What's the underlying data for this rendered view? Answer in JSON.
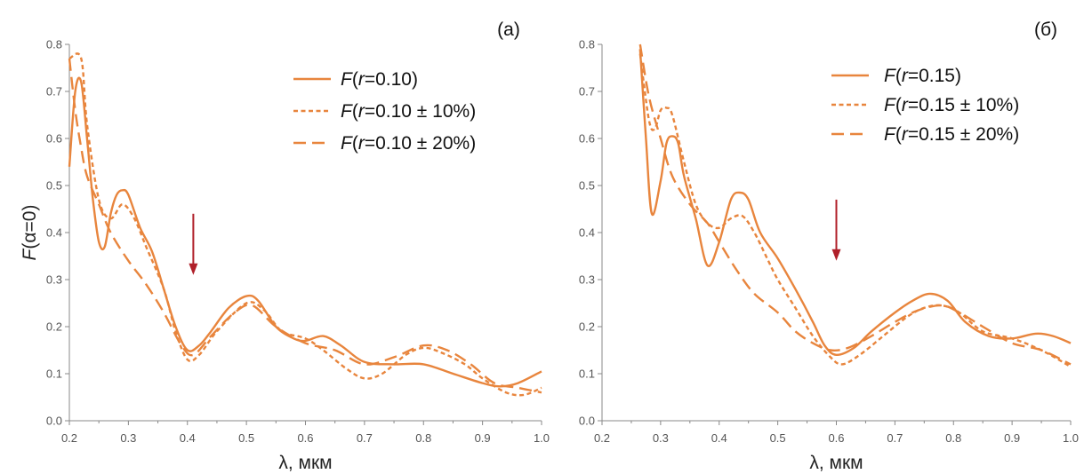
{
  "colors": {
    "series": "#E8853D",
    "arrow": "#B0202A",
    "axis": "#888888"
  },
  "chart_data": [
    {
      "type": "line",
      "panel_label": "(a)",
      "xlabel": "λ, мкм",
      "ylabel": "F(α=0)",
      "xlim": [
        0.2,
        1.0
      ],
      "ylim": [
        0.0,
        0.8
      ],
      "x_ticks": [
        "0.2",
        "0.3",
        "0.4",
        "0.5",
        "0.6",
        "0.7",
        "0.8",
        "0.9",
        "1.0"
      ],
      "y_ticks": [
        "0.0",
        "0.1",
        "0.2",
        "0.3",
        "0.4",
        "0.5",
        "0.6",
        "0.7",
        "0.8"
      ],
      "legend_position": "top-right",
      "grid": false,
      "arrow_at": {
        "x": 0.41,
        "y_from": 0.44,
        "y_to": 0.31
      },
      "series": [
        {
          "name": "F(r=0.10)",
          "legend": {
            "italic": "F",
            "open": "(",
            "var": "r",
            "rest": "=0.10)"
          },
          "style": "solid",
          "points": [
            [
              0.2,
              0.54
            ],
            [
              0.21,
              0.7
            ],
            [
              0.22,
              0.72
            ],
            [
              0.23,
              0.6
            ],
            [
              0.24,
              0.47
            ],
            [
              0.25,
              0.38
            ],
            [
              0.26,
              0.37
            ],
            [
              0.27,
              0.44
            ],
            [
              0.28,
              0.48
            ],
            [
              0.29,
              0.49
            ],
            [
              0.3,
              0.48
            ],
            [
              0.32,
              0.41
            ],
            [
              0.34,
              0.36
            ],
            [
              0.36,
              0.28
            ],
            [
              0.38,
              0.2
            ],
            [
              0.4,
              0.15
            ],
            [
              0.42,
              0.16
            ],
            [
              0.44,
              0.19
            ],
            [
              0.47,
              0.24
            ],
            [
              0.5,
              0.265
            ],
            [
              0.52,
              0.255
            ],
            [
              0.55,
              0.2
            ],
            [
              0.58,
              0.175
            ],
            [
              0.6,
              0.17
            ],
            [
              0.63,
              0.18
            ],
            [
              0.66,
              0.16
            ],
            [
              0.7,
              0.125
            ],
            [
              0.75,
              0.12
            ],
            [
              0.8,
              0.12
            ],
            [
              0.85,
              0.1
            ],
            [
              0.9,
              0.08
            ],
            [
              0.93,
              0.073
            ],
            [
              0.96,
              0.08
            ],
            [
              1.0,
              0.105
            ]
          ]
        },
        {
          "name": "F(r=0.10 ± 10%)",
          "legend": {
            "italic": "F",
            "open": "(",
            "var": "r",
            "rest": "=0.10 ± 10%)"
          },
          "style": "short-dash",
          "points": [
            [
              0.2,
              0.77
            ],
            [
              0.22,
              0.77
            ],
            [
              0.23,
              0.63
            ],
            [
              0.25,
              0.47
            ],
            [
              0.27,
              0.43
            ],
            [
              0.29,
              0.46
            ],
            [
              0.31,
              0.43
            ],
            [
              0.33,
              0.37
            ],
            [
              0.36,
              0.28
            ],
            [
              0.38,
              0.19
            ],
            [
              0.4,
              0.13
            ],
            [
              0.42,
              0.14
            ],
            [
              0.45,
              0.19
            ],
            [
              0.5,
              0.25
            ],
            [
              0.53,
              0.235
            ],
            [
              0.56,
              0.19
            ],
            [
              0.6,
              0.175
            ],
            [
              0.63,
              0.15
            ],
            [
              0.67,
              0.11
            ],
            [
              0.7,
              0.09
            ],
            [
              0.73,
              0.1
            ],
            [
              0.77,
              0.14
            ],
            [
              0.8,
              0.155
            ],
            [
              0.83,
              0.145
            ],
            [
              0.87,
              0.12
            ],
            [
              0.9,
              0.09
            ],
            [
              0.94,
              0.06
            ],
            [
              0.97,
              0.055
            ],
            [
              1.0,
              0.07
            ]
          ]
        },
        {
          "name": "F(r=0.10 ± 20%)",
          "legend": {
            "italic": "F",
            "open": "(",
            "var": "r",
            "rest": "=0.10 ± 20%)"
          },
          "style": "long-dash",
          "points": [
            [
              0.2,
              0.77
            ],
            [
              0.21,
              0.66
            ],
            [
              0.22,
              0.58
            ],
            [
              0.23,
              0.52
            ],
            [
              0.25,
              0.46
            ],
            [
              0.27,
              0.4
            ],
            [
              0.3,
              0.34
            ],
            [
              0.33,
              0.29
            ],
            [
              0.36,
              0.23
            ],
            [
              0.39,
              0.16
            ],
            [
              0.41,
              0.14
            ],
            [
              0.44,
              0.18
            ],
            [
              0.48,
              0.23
            ],
            [
              0.51,
              0.245
            ],
            [
              0.55,
              0.2
            ],
            [
              0.6,
              0.165
            ],
            [
              0.65,
              0.15
            ],
            [
              0.7,
              0.12
            ],
            [
              0.75,
              0.135
            ],
            [
              0.8,
              0.16
            ],
            [
              0.84,
              0.15
            ],
            [
              0.88,
              0.12
            ],
            [
              0.92,
              0.08
            ],
            [
              0.96,
              0.07
            ],
            [
              1.0,
              0.06
            ]
          ]
        }
      ]
    },
    {
      "type": "line",
      "panel_label": "(б)",
      "xlabel": "λ, мкм",
      "ylabel": "",
      "xlim": [
        0.2,
        1.0
      ],
      "ylim": [
        0.0,
        0.8
      ],
      "x_ticks": [
        "0.2",
        "0.3",
        "0.4",
        "0.5",
        "0.6",
        "0.7",
        "0.8",
        "0.9",
        "1.0"
      ],
      "y_ticks": [
        "0.0",
        "0.1",
        "0.2",
        "0.3",
        "0.4",
        "0.5",
        "0.6",
        "0.7",
        "0.8"
      ],
      "legend_position": "top-right",
      "grid": false,
      "arrow_at": {
        "x": 0.6,
        "y_from": 0.47,
        "y_to": 0.34
      },
      "series": [
        {
          "name": "F(r=0.15)",
          "legend": {
            "italic": "F",
            "open": "(",
            "var": "r",
            "rest": "=0.15)"
          },
          "style": "solid",
          "points": [
            [
              0.265,
              0.79
            ],
            [
              0.275,
              0.6
            ],
            [
              0.285,
              0.44
            ],
            [
              0.3,
              0.51
            ],
            [
              0.31,
              0.59
            ],
            [
              0.32,
              0.605
            ],
            [
              0.33,
              0.59
            ],
            [
              0.34,
              0.52
            ],
            [
              0.36,
              0.43
            ],
            [
              0.38,
              0.33
            ],
            [
              0.4,
              0.38
            ],
            [
              0.42,
              0.47
            ],
            [
              0.435,
              0.485
            ],
            [
              0.45,
              0.47
            ],
            [
              0.47,
              0.4
            ],
            [
              0.5,
              0.345
            ],
            [
              0.53,
              0.28
            ],
            [
              0.56,
              0.21
            ],
            [
              0.58,
              0.16
            ],
            [
              0.6,
              0.14
            ],
            [
              0.63,
              0.155
            ],
            [
              0.66,
              0.19
            ],
            [
              0.7,
              0.23
            ],
            [
              0.73,
              0.255
            ],
            [
              0.76,
              0.27
            ],
            [
              0.79,
              0.255
            ],
            [
              0.82,
              0.21
            ],
            [
              0.86,
              0.18
            ],
            [
              0.9,
              0.175
            ],
            [
              0.94,
              0.185
            ],
            [
              0.97,
              0.18
            ],
            [
              1.0,
              0.165
            ]
          ]
        },
        {
          "name": "F(r=0.15 ± 10%)",
          "legend": {
            "italic": "F",
            "open": "(",
            "var": "r",
            "rest": "=0.15 ± 10%)"
          },
          "style": "short-dash",
          "points": [
            [
              0.265,
              0.78
            ],
            [
              0.28,
              0.64
            ],
            [
              0.29,
              0.62
            ],
            [
              0.3,
              0.66
            ],
            [
              0.31,
              0.665
            ],
            [
              0.32,
              0.65
            ],
            [
              0.34,
              0.55
            ],
            [
              0.36,
              0.46
            ],
            [
              0.38,
              0.42
            ],
            [
              0.4,
              0.41
            ],
            [
              0.42,
              0.43
            ],
            [
              0.44,
              0.435
            ],
            [
              0.46,
              0.4
            ],
            [
              0.48,
              0.35
            ],
            [
              0.5,
              0.3
            ],
            [
              0.53,
              0.24
            ],
            [
              0.56,
              0.18
            ],
            [
              0.59,
              0.135
            ],
            [
              0.61,
              0.12
            ],
            [
              0.64,
              0.14
            ],
            [
              0.68,
              0.18
            ],
            [
              0.72,
              0.22
            ],
            [
              0.75,
              0.24
            ],
            [
              0.78,
              0.245
            ],
            [
              0.81,
              0.23
            ],
            [
              0.85,
              0.19
            ],
            [
              0.9,
              0.175
            ],
            [
              0.95,
              0.15
            ],
            [
              1.0,
              0.115
            ]
          ]
        },
        {
          "name": "F(r=0.15 ± 20%)",
          "legend": {
            "italic": "F",
            "open": "(",
            "var": "r",
            "rest": "=0.15 ± 20%)"
          },
          "style": "long-dash",
          "points": [
            [
              0.265,
              0.8
            ],
            [
              0.28,
              0.69
            ],
            [
              0.3,
              0.6
            ],
            [
              0.32,
              0.52
            ],
            [
              0.35,
              0.46
            ],
            [
              0.38,
              0.42
            ],
            [
              0.4,
              0.38
            ],
            [
              0.43,
              0.32
            ],
            [
              0.46,
              0.27
            ],
            [
              0.5,
              0.23
            ],
            [
              0.53,
              0.19
            ],
            [
              0.56,
              0.165
            ],
            [
              0.59,
              0.15
            ],
            [
              0.62,
              0.155
            ],
            [
              0.66,
              0.18
            ],
            [
              0.7,
              0.21
            ],
            [
              0.74,
              0.235
            ],
            [
              0.78,
              0.245
            ],
            [
              0.81,
              0.23
            ],
            [
              0.85,
              0.2
            ],
            [
              0.9,
              0.165
            ],
            [
              0.95,
              0.15
            ],
            [
              1.0,
              0.12
            ]
          ]
        }
      ]
    }
  ]
}
